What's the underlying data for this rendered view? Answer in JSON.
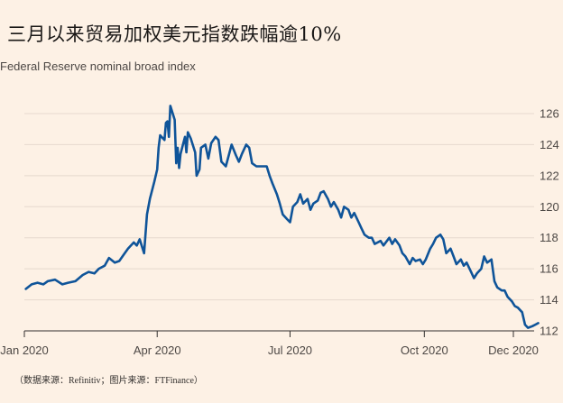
{
  "page": {
    "title": "三月以来贸易加权美元指数跌幅逾10%",
    "subtitle": "Federal Reserve nominal broad index",
    "source": "（数据来源：Refinitiv；图片来源：FTFinance）"
  },
  "colors": {
    "background": "#fdf1e5",
    "line": "#0f5499",
    "grid": "#e6d9ce",
    "axis": "#33302e"
  },
  "chart_data": {
    "type": "line",
    "title": "三月以来贸易加权美元指数跌幅逾10%",
    "subtitle": "Federal Reserve nominal broad index",
    "ylim": [
      112,
      126
    ],
    "yticks": [
      112,
      114,
      116,
      118,
      120,
      122,
      124,
      126
    ],
    "y_axis_side": "right",
    "grid": true,
    "x_tick_labels": [
      {
        "label": "Jan 2020",
        "date": "2020-01-01"
      },
      {
        "label": "Apr 2020",
        "date": "2020-04-01"
      },
      {
        "label": "Jul 2020",
        "date": "2020-07-01"
      },
      {
        "label": "Oct 2020",
        "date": "2020-10-01"
      },
      {
        "label": "Dec 2020",
        "date": "2020-12-01"
      }
    ],
    "series": [
      {
        "points": [
          [
            "2020-01-02",
            114.7
          ],
          [
            "2020-01-06",
            115.0
          ],
          [
            "2020-01-10",
            115.1
          ],
          [
            "2020-01-14",
            115.0
          ],
          [
            "2020-01-17",
            115.2
          ],
          [
            "2020-01-22",
            115.3
          ],
          [
            "2020-01-27",
            115.0
          ],
          [
            "2020-01-31",
            115.1
          ],
          [
            "2020-02-05",
            115.2
          ],
          [
            "2020-02-10",
            115.6
          ],
          [
            "2020-02-14",
            115.8
          ],
          [
            "2020-02-18",
            115.7
          ],
          [
            "2020-02-21",
            116.0
          ],
          [
            "2020-02-25",
            116.2
          ],
          [
            "2020-02-28",
            116.7
          ],
          [
            "2020-03-03",
            116.4
          ],
          [
            "2020-03-06",
            116.5
          ],
          [
            "2020-03-09",
            116.9
          ],
          [
            "2020-03-12",
            117.3
          ],
          [
            "2020-03-16",
            117.7
          ],
          [
            "2020-03-18",
            117.5
          ],
          [
            "2020-03-20",
            117.9
          ],
          [
            "2020-03-23",
            117.0
          ],
          [
            "2020-03-25",
            119.5
          ],
          [
            "2020-03-27",
            120.5
          ],
          [
            "2020-03-30",
            121.6
          ],
          [
            "2020-04-01",
            122.4
          ],
          [
            "2020-04-02",
            123.8
          ],
          [
            "2020-04-03",
            124.6
          ],
          [
            "2020-04-06",
            124.3
          ],
          [
            "2020-04-07",
            125.4
          ],
          [
            "2020-04-08",
            125.5
          ],
          [
            "2020-04-09",
            124.5
          ],
          [
            "2020-04-10",
            126.5
          ],
          [
            "2020-04-13",
            125.6
          ],
          [
            "2020-04-14",
            122.8
          ],
          [
            "2020-04-15",
            123.8
          ],
          [
            "2020-04-16",
            122.5
          ],
          [
            "2020-04-17",
            123.4
          ],
          [
            "2020-04-20",
            124.5
          ],
          [
            "2020-04-21",
            123.5
          ],
          [
            "2020-04-22",
            124.8
          ],
          [
            "2020-04-24",
            124.4
          ],
          [
            "2020-04-27",
            123.5
          ],
          [
            "2020-04-28",
            122.0
          ],
          [
            "2020-04-30",
            122.4
          ],
          [
            "2020-05-01",
            123.8
          ],
          [
            "2020-05-04",
            124.0
          ],
          [
            "2020-05-06",
            123.1
          ],
          [
            "2020-05-08",
            124.1
          ],
          [
            "2020-05-11",
            124.5
          ],
          [
            "2020-05-13",
            124.3
          ],
          [
            "2020-05-15",
            122.9
          ],
          [
            "2020-05-18",
            122.6
          ],
          [
            "2020-05-20",
            123.3
          ],
          [
            "2020-05-22",
            124.0
          ],
          [
            "2020-05-25",
            123.3
          ],
          [
            "2020-05-27",
            122.9
          ],
          [
            "2020-05-29",
            123.4
          ],
          [
            "2020-06-01",
            124.0
          ],
          [
            "2020-06-03",
            123.8
          ],
          [
            "2020-06-05",
            122.8
          ],
          [
            "2020-06-08",
            122.6
          ],
          [
            "2020-06-12",
            122.6
          ],
          [
            "2020-06-15",
            122.6
          ],
          [
            "2020-06-17",
            122.0
          ],
          [
            "2020-06-19",
            121.5
          ],
          [
            "2020-06-22",
            120.8
          ],
          [
            "2020-06-24",
            120.2
          ],
          [
            "2020-06-26",
            119.5
          ],
          [
            "2020-06-29",
            119.2
          ],
          [
            "2020-07-01",
            119.0
          ],
          [
            "2020-07-03",
            120.0
          ],
          [
            "2020-07-06",
            120.3
          ],
          [
            "2020-07-08",
            120.8
          ],
          [
            "2020-07-10",
            120.2
          ],
          [
            "2020-07-13",
            120.5
          ],
          [
            "2020-07-15",
            119.8
          ],
          [
            "2020-07-17",
            120.2
          ],
          [
            "2020-07-20",
            120.4
          ],
          [
            "2020-07-22",
            120.9
          ],
          [
            "2020-07-24",
            121.0
          ],
          [
            "2020-07-27",
            120.5
          ],
          [
            "2020-07-29",
            120.0
          ],
          [
            "2020-07-31",
            120.3
          ],
          [
            "2020-08-03",
            119.8
          ],
          [
            "2020-08-05",
            119.3
          ],
          [
            "2020-08-07",
            120.0
          ],
          [
            "2020-08-10",
            119.8
          ],
          [
            "2020-08-12",
            119.3
          ],
          [
            "2020-08-14",
            119.6
          ],
          [
            "2020-08-17",
            119.0
          ],
          [
            "2020-08-19",
            118.6
          ],
          [
            "2020-08-21",
            118.2
          ],
          [
            "2020-08-24",
            118.0
          ],
          [
            "2020-08-26",
            118.0
          ],
          [
            "2020-08-28",
            117.6
          ],
          [
            "2020-09-01",
            117.8
          ],
          [
            "2020-09-03",
            117.5
          ],
          [
            "2020-09-07",
            118.0
          ],
          [
            "2020-09-09",
            117.6
          ],
          [
            "2020-09-11",
            117.9
          ],
          [
            "2020-09-14",
            117.5
          ],
          [
            "2020-09-16",
            117.0
          ],
          [
            "2020-09-18",
            116.8
          ],
          [
            "2020-09-21",
            116.3
          ],
          [
            "2020-09-23",
            116.7
          ],
          [
            "2020-09-25",
            116.5
          ],
          [
            "2020-09-28",
            116.6
          ],
          [
            "2020-09-30",
            116.3
          ],
          [
            "2020-10-02",
            116.6
          ],
          [
            "2020-10-05",
            117.3
          ],
          [
            "2020-10-07",
            117.6
          ],
          [
            "2020-10-09",
            118.0
          ],
          [
            "2020-10-12",
            118.2
          ],
          [
            "2020-10-14",
            117.9
          ],
          [
            "2020-10-16",
            117.0
          ],
          [
            "2020-10-19",
            117.3
          ],
          [
            "2020-10-21",
            116.8
          ],
          [
            "2020-10-23",
            116.3
          ],
          [
            "2020-10-26",
            116.6
          ],
          [
            "2020-10-28",
            116.2
          ],
          [
            "2020-10-30",
            116.4
          ],
          [
            "2020-11-02",
            115.8
          ],
          [
            "2020-11-04",
            115.4
          ],
          [
            "2020-11-06",
            115.7
          ],
          [
            "2020-11-09",
            116.0
          ],
          [
            "2020-11-11",
            116.8
          ],
          [
            "2020-11-13",
            116.4
          ],
          [
            "2020-11-16",
            116.6
          ],
          [
            "2020-11-18",
            115.2
          ],
          [
            "2020-11-20",
            114.8
          ],
          [
            "2020-11-23",
            114.6
          ],
          [
            "2020-11-25",
            114.6
          ],
          [
            "2020-11-27",
            114.2
          ],
          [
            "2020-11-30",
            113.9
          ],
          [
            "2020-12-02",
            113.6
          ],
          [
            "2020-12-04",
            113.5
          ],
          [
            "2020-12-07",
            113.2
          ],
          [
            "2020-12-09",
            112.4
          ],
          [
            "2020-12-11",
            112.2
          ],
          [
            "2020-12-14",
            112.3
          ],
          [
            "2020-12-16",
            112.4
          ],
          [
            "2020-12-18",
            112.5
          ]
        ]
      }
    ]
  }
}
